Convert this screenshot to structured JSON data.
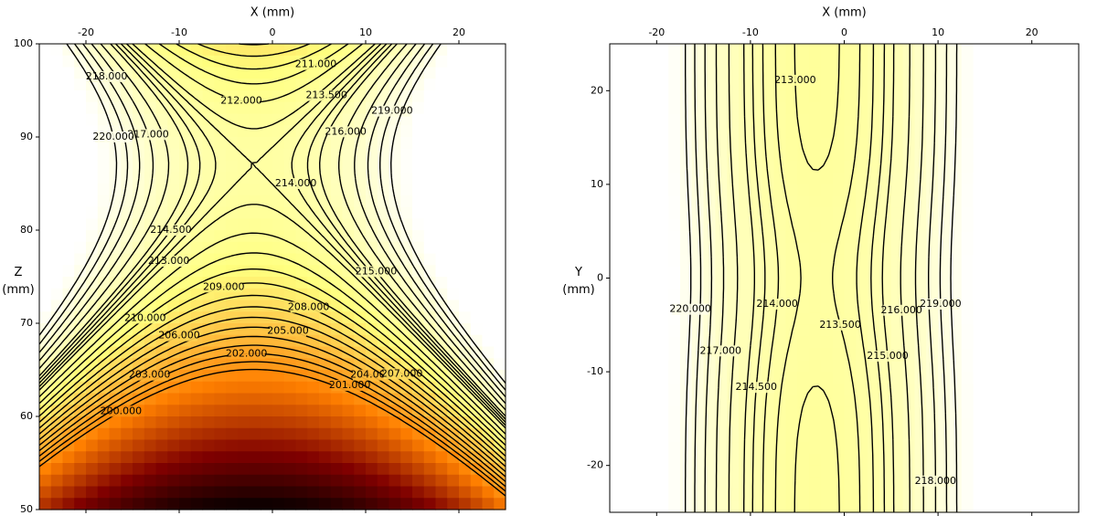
{
  "chart_data": [
    {
      "type": "contour",
      "xlabel": "X (mm)",
      "ylabel": "Z (mm)",
      "xlim": [
        -25,
        25
      ],
      "ylim": [
        50,
        100
      ],
      "xticks": [
        -20,
        -10,
        0,
        10,
        20
      ],
      "yticks": [
        50,
        60,
        70,
        80,
        90,
        100
      ],
      "levels": [
        200,
        201,
        202,
        203,
        204,
        205,
        206,
        207,
        208,
        209,
        210,
        211,
        212,
        213,
        213.5,
        214,
        214.5,
        215,
        216,
        217,
        218,
        219,
        220
      ],
      "value_labels": [
        "200.000",
        "201.000",
        "202.000",
        "203.000",
        "204.000",
        "205.000",
        "206.000",
        "207.000",
        "208.000",
        "209.000",
        "210.000",
        "211.000",
        "212.000",
        "213.000",
        "213.500",
        "214.000",
        "214.500",
        "215.000",
        "216.000",
        "217.000",
        "218.000",
        "219.000",
        "220.000"
      ]
    },
    {
      "type": "contour",
      "xlabel": "X (mm)",
      "ylabel": "Y (mm)",
      "xlim": [
        -25,
        25
      ],
      "ylim": [
        -25,
        25
      ],
      "xticks": [
        -20,
        -10,
        0,
        10,
        20
      ],
      "yticks": [
        -20,
        -10,
        0,
        10,
        20
      ],
      "levels": [
        213,
        213.5,
        214,
        214.5,
        215,
        216,
        217,
        218,
        219,
        220
      ],
      "value_labels": [
        "213.000",
        "213.500",
        "214.000",
        "214.500",
        "215.000",
        "216.000",
        "217.000",
        "218.000",
        "219.000",
        "220.000"
      ]
    }
  ]
}
